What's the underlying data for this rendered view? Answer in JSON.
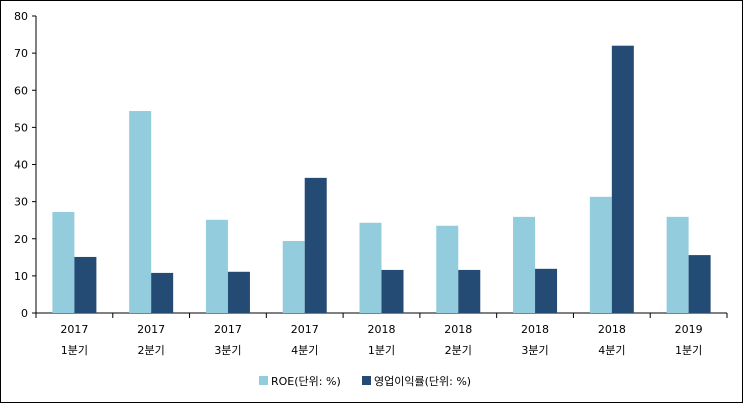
{
  "chart_data": {
    "type": "bar",
    "title": "",
    "xlabel": "",
    "ylabel": "",
    "ylim": [
      0,
      80
    ],
    "yticks": [
      0,
      10,
      20,
      30,
      40,
      50,
      60,
      70,
      80
    ],
    "grid": false,
    "legend_position": "bottom",
    "categories": [
      [
        "2017",
        "1분기"
      ],
      [
        "2017",
        "2분기"
      ],
      [
        "2017",
        "3분기"
      ],
      [
        "2017",
        "4분기"
      ],
      [
        "2018",
        "1분기"
      ],
      [
        "2018",
        "2분기"
      ],
      [
        "2018",
        "3분기"
      ],
      [
        "2018",
        "4분기"
      ],
      [
        "2019",
        "1분기"
      ]
    ],
    "series": [
      {
        "name": "ROE(단위: %)",
        "color": "#93CDDD",
        "values": [
          27.2,
          54.4,
          25.1,
          19.4,
          24.3,
          23.5,
          25.9,
          31.3,
          25.9
        ]
      },
      {
        "name": "영업이익률(단위: %)",
        "color": "#234B74",
        "values": [
          15.1,
          10.8,
          11.1,
          36.4,
          11.6,
          11.6,
          11.9,
          72.0,
          15.6
        ]
      }
    ]
  }
}
